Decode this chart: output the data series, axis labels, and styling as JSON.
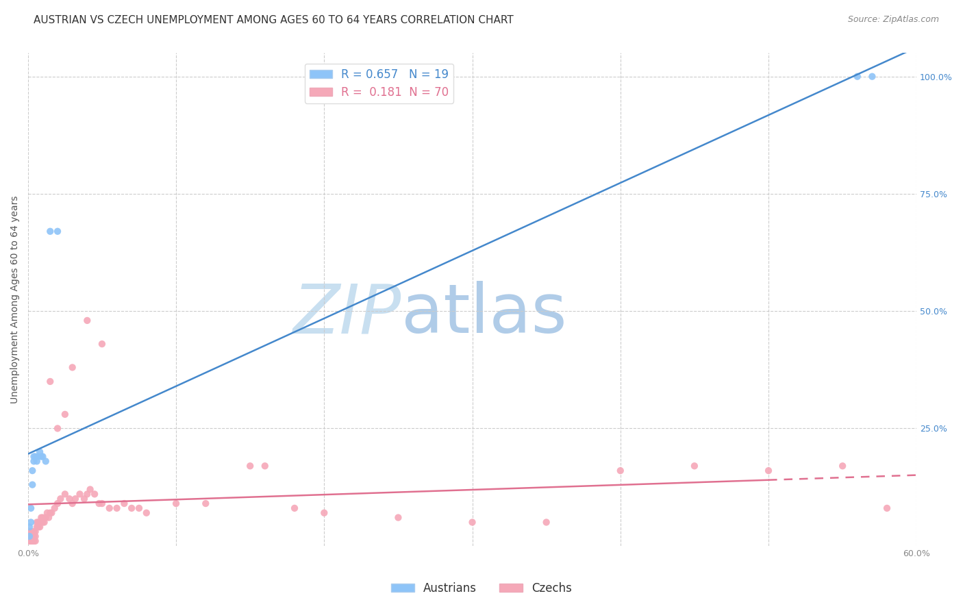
{
  "title": "AUSTRIAN VS CZECH UNEMPLOYMENT AMONG AGES 60 TO 64 YEARS CORRELATION CHART",
  "source": "Source: ZipAtlas.com",
  "ylabel": "Unemployment Among Ages 60 to 64 years",
  "xlim": [
    0.0,
    0.6
  ],
  "ylim": [
    0.0,
    1.05
  ],
  "xtick_vals": [
    0.0,
    0.1,
    0.2,
    0.3,
    0.4,
    0.5,
    0.6
  ],
  "xtick_labels": [
    "0.0%",
    "",
    "",
    "",
    "",
    "",
    "60.0%"
  ],
  "ytick_vals": [
    0.25,
    0.5,
    0.75,
    1.0
  ],
  "austrians_x": [
    0.001,
    0.001,
    0.002,
    0.002,
    0.003,
    0.003,
    0.004,
    0.004,
    0.005,
    0.006,
    0.007,
    0.008,
    0.009,
    0.01,
    0.012,
    0.015,
    0.02,
    0.56,
    0.57
  ],
  "austrians_y": [
    0.02,
    0.04,
    0.05,
    0.08,
    0.13,
    0.16,
    0.18,
    0.19,
    0.19,
    0.18,
    0.19,
    0.2,
    0.19,
    0.19,
    0.18,
    0.67,
    0.67,
    1.0,
    1.0
  ],
  "czechs_x": [
    0.001,
    0.001,
    0.001,
    0.002,
    0.002,
    0.002,
    0.003,
    0.003,
    0.003,
    0.004,
    0.004,
    0.004,
    0.005,
    0.005,
    0.005,
    0.006,
    0.006,
    0.007,
    0.007,
    0.008,
    0.008,
    0.009,
    0.01,
    0.01,
    0.011,
    0.012,
    0.013,
    0.014,
    0.015,
    0.016,
    0.018,
    0.02,
    0.022,
    0.025,
    0.028,
    0.03,
    0.032,
    0.035,
    0.038,
    0.04,
    0.042,
    0.045,
    0.048,
    0.05,
    0.055,
    0.06,
    0.065,
    0.07,
    0.075,
    0.08,
    0.1,
    0.12,
    0.15,
    0.16,
    0.18,
    0.2,
    0.25,
    0.3,
    0.35,
    0.4,
    0.45,
    0.5,
    0.55,
    0.58,
    0.015,
    0.02,
    0.025,
    0.03,
    0.04,
    0.05
  ],
  "czechs_y": [
    0.01,
    0.02,
    0.03,
    0.01,
    0.02,
    0.03,
    0.01,
    0.02,
    0.03,
    0.01,
    0.02,
    0.03,
    0.01,
    0.02,
    0.03,
    0.04,
    0.05,
    0.04,
    0.05,
    0.04,
    0.05,
    0.06,
    0.05,
    0.06,
    0.05,
    0.06,
    0.07,
    0.06,
    0.07,
    0.07,
    0.08,
    0.09,
    0.1,
    0.11,
    0.1,
    0.09,
    0.1,
    0.11,
    0.1,
    0.11,
    0.12,
    0.11,
    0.09,
    0.09,
    0.08,
    0.08,
    0.09,
    0.08,
    0.08,
    0.07,
    0.09,
    0.09,
    0.17,
    0.17,
    0.08,
    0.07,
    0.06,
    0.05,
    0.05,
    0.16,
    0.17,
    0.16,
    0.17,
    0.08,
    0.35,
    0.25,
    0.28,
    0.38,
    0.48,
    0.43
  ],
  "austrians_color": "#8ec4f8",
  "czechs_color": "#f5a8b8",
  "regression_austrians_color": "#4488cc",
  "regression_czechs_color": "#e07090",
  "R_austrians": 0.657,
  "N_austrians": 19,
  "R_czechs": 0.181,
  "N_czechs": 70,
  "background_color": "#ffffff",
  "watermark_zip": "ZIP",
  "watermark_atlas": "atlas",
  "watermark_color_zip": "#c8dff0",
  "watermark_color_atlas": "#b0cce8",
  "grid_color": "#cccccc",
  "title_fontsize": 11,
  "source_fontsize": 9,
  "ylabel_fontsize": 10,
  "tick_fontsize": 9,
  "legend_fontsize": 12
}
